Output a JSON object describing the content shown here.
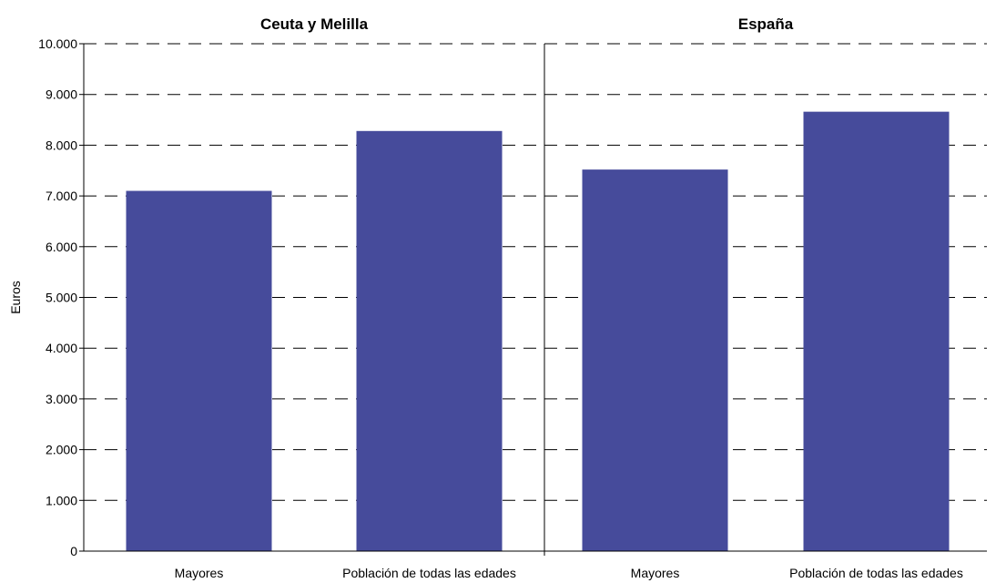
{
  "chart_data": {
    "type": "bar",
    "ylabel": "Euros",
    "ylim": [
      0,
      10000
    ],
    "yticks": [
      "0",
      "1.000",
      "2.000",
      "3.000",
      "4.000",
      "5.000",
      "6.000",
      "7.000",
      "8.000",
      "9.000",
      "10.000"
    ],
    "grid": "dashed horizontal",
    "bar_color": "#464b9b",
    "panels": [
      {
        "title": "Ceuta y Melilla",
        "categories": [
          "Mayores",
          "Población de todas las edades"
        ],
        "values": [
          7100,
          8280
        ]
      },
      {
        "title": "España",
        "categories": [
          "Mayores",
          "Población de todas las edades"
        ],
        "values": [
          7520,
          8660
        ]
      }
    ]
  }
}
